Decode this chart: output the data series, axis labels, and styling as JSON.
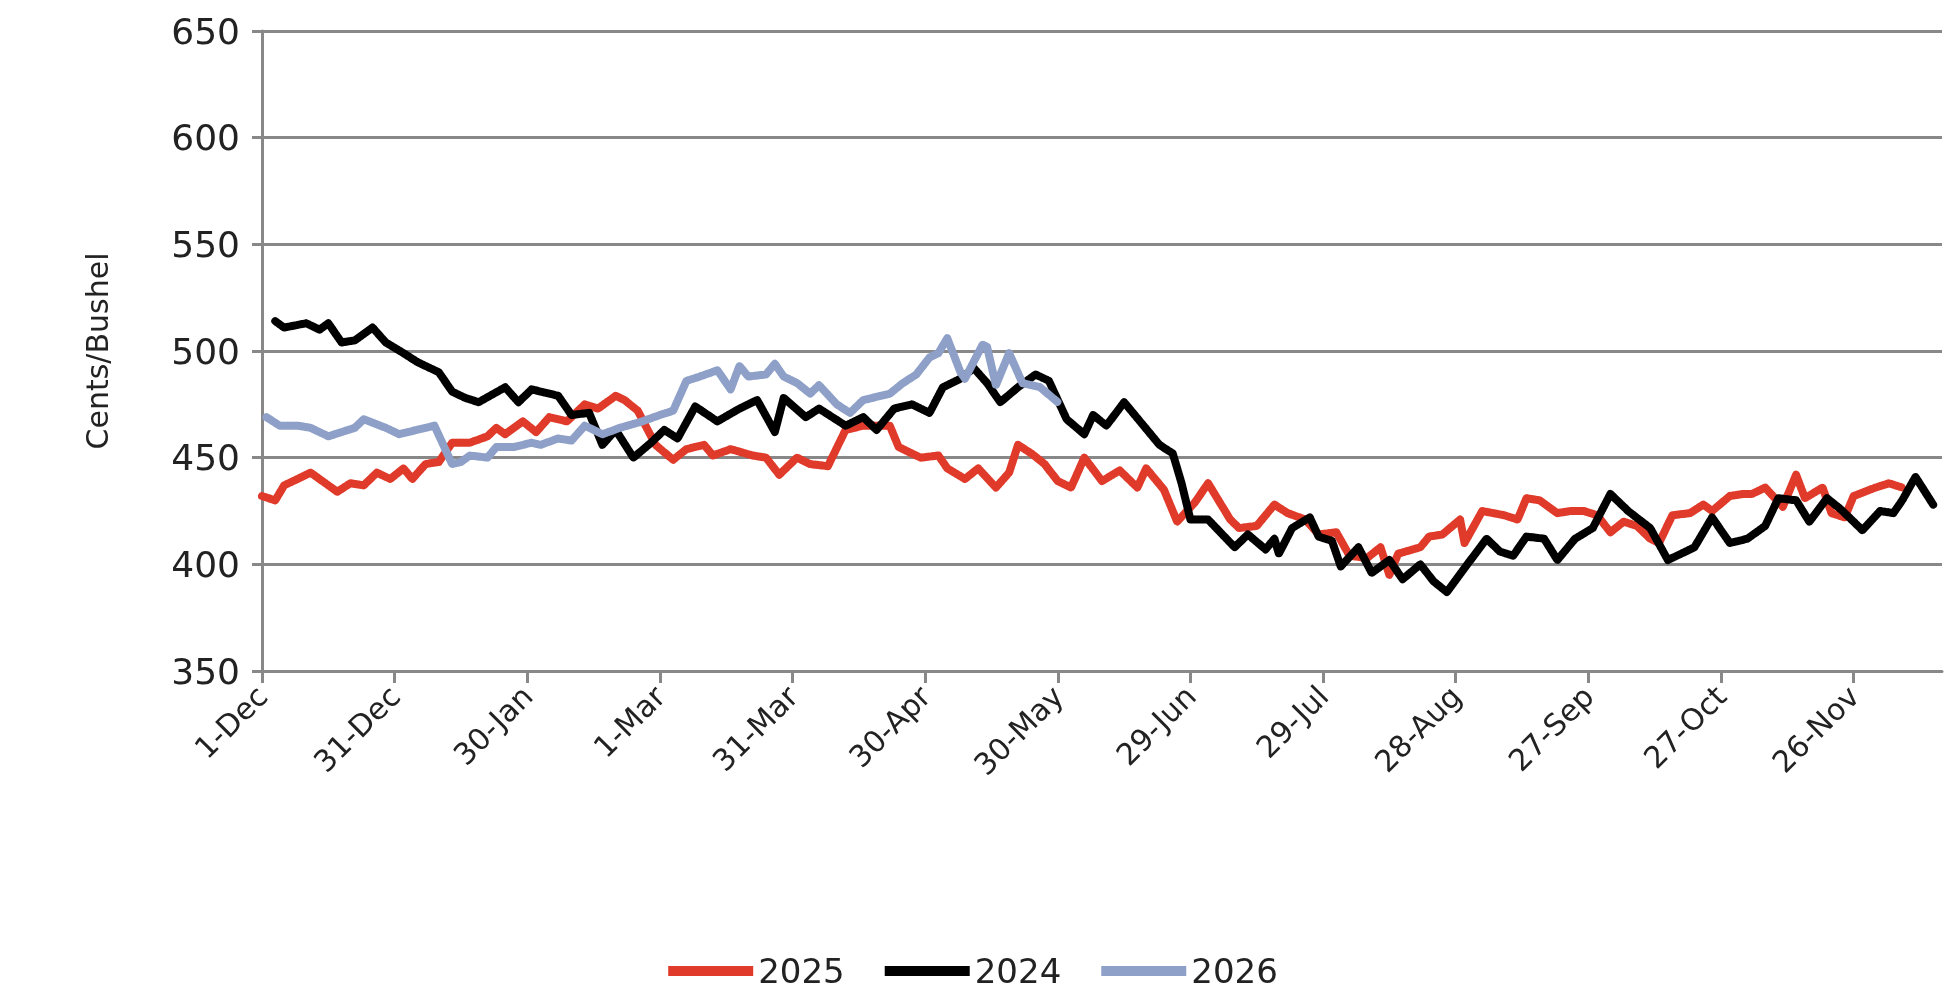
{
  "chart_data": {
    "type": "line",
    "ylabel": "Cents/Bushel",
    "xlim": [
      "2025-12-01",
      "2026-12-16"
    ],
    "xticks": [
      {
        "value": "2025-12-01",
        "label": "1-Dec"
      },
      {
        "value": "2025-12-31",
        "label": "31-Dec"
      },
      {
        "value": "2026-01-30",
        "label": "30-Jan"
      },
      {
        "value": "2026-03-01",
        "label": "1-Mar"
      },
      {
        "value": "2026-03-31",
        "label": "31-Mar"
      },
      {
        "value": "2026-04-30",
        "label": "30-Apr"
      },
      {
        "value": "2026-05-30",
        "label": "30-May"
      },
      {
        "value": "2026-06-29",
        "label": "29-Jun"
      },
      {
        "value": "2026-07-29",
        "label": "29-Jul"
      },
      {
        "value": "2026-08-28",
        "label": "28-Aug"
      },
      {
        "value": "2026-09-27",
        "label": "27-Sep"
      },
      {
        "value": "2026-10-27",
        "label": "27-Oct"
      },
      {
        "value": "2026-11-26",
        "label": "26-Nov"
      }
    ],
    "ylim": [
      350,
      650
    ],
    "yticks": [
      350,
      400,
      450,
      500,
      550,
      600,
      650
    ],
    "grid": "y",
    "legend": "bottom",
    "marker": "none",
    "line_style": "dashed",
    "series": [
      {
        "name": "2025",
        "color": "#e03a2a",
        "x": [
          "2025-12-01",
          "2025-12-04",
          "2025-12-06",
          "2025-12-10",
          "2025-12-12",
          "2025-12-14",
          "2025-12-18",
          "2025-12-21",
          "2025-12-24",
          "2025-12-27",
          "2025-12-30",
          "2026-01-02",
          "2026-01-04",
          "2026-01-07",
          "2026-01-10",
          "2026-01-13",
          "2026-01-17",
          "2026-01-21",
          "2026-01-23",
          "2026-01-25",
          "2026-01-29",
          "2026-02-01",
          "2026-02-04",
          "2026-02-08",
          "2026-02-12",
          "2026-02-15",
          "2026-02-19",
          "2026-02-21",
          "2026-02-24",
          "2026-02-28",
          "2026-03-04",
          "2026-03-07",
          "2026-03-11",
          "2026-03-13",
          "2026-03-17",
          "2026-03-22",
          "2026-03-25",
          "2026-03-28",
          "2026-04-01",
          "2026-04-04",
          "2026-04-08",
          "2026-04-12",
          "2026-04-16",
          "2026-04-22",
          "2026-04-24",
          "2026-04-29",
          "2026-05-03",
          "2026-05-05",
          "2026-05-09",
          "2026-05-12",
          "2026-05-16",
          "2026-05-19",
          "2026-05-21",
          "2026-05-24",
          "2026-05-27",
          "2026-05-30",
          "2026-06-02",
          "2026-06-05",
          "2026-06-09",
          "2026-06-13",
          "2026-06-17",
          "2026-06-19",
          "2026-06-23",
          "2026-06-26",
          "2026-06-30",
          "2026-07-03",
          "2026-07-08",
          "2026-07-10",
          "2026-07-14",
          "2026-07-18",
          "2026-07-21",
          "2026-07-25",
          "2026-07-28",
          "2026-08-01",
          "2026-08-04",
          "2026-08-08",
          "2026-08-11",
          "2026-08-13",
          "2026-08-15",
          "2026-08-20",
          "2026-08-22",
          "2026-08-25",
          "2026-08-29",
          "2026-08-30",
          "2026-09-03",
          "2026-09-08",
          "2026-09-11",
          "2026-09-13",
          "2026-09-16",
          "2026-09-20",
          "2026-09-23",
          "2026-09-26",
          "2026-09-29",
          "2026-10-02",
          "2026-10-05",
          "2026-10-08",
          "2026-10-11",
          "2026-10-13",
          "2026-10-16",
          "2026-10-20",
          "2026-10-23",
          "2026-10-25",
          "2026-10-29",
          "2026-11-01",
          "2026-11-03",
          "2026-11-06",
          "2026-11-10",
          "2026-11-13",
          "2026-11-15",
          "2026-11-19",
          "2026-11-21",
          "2026-11-24",
          "2026-11-26",
          "2026-12-01",
          "2026-12-04",
          "2026-12-07"
        ],
        "values": [
          432,
          430,
          437,
          441,
          443,
          440,
          434,
          438,
          437,
          443,
          440,
          445,
          440,
          447,
          448,
          457,
          457,
          460,
          464,
          461,
          467,
          462,
          469,
          467,
          475,
          473,
          479,
          477,
          472,
          456,
          449,
          454,
          456,
          451,
          454,
          451,
          450,
          442,
          450,
          447,
          446,
          463,
          465,
          465,
          455,
          450,
          451,
          445,
          440,
          445,
          436,
          443,
          456,
          452,
          447,
          439,
          436,
          450,
          439,
          444,
          436,
          445,
          435,
          420,
          429,
          438,
          421,
          417,
          418,
          428,
          424,
          421,
          414,
          415,
          404,
          403,
          408,
          395,
          405,
          408,
          413,
          414,
          421,
          410,
          425,
          423,
          421,
          431,
          430,
          424,
          425,
          425,
          423,
          415,
          420,
          418,
          412,
          410,
          423,
          424,
          428,
          425,
          432,
          433,
          433,
          436,
          427,
          442,
          431,
          436,
          424,
          422,
          432,
          436,
          438,
          436
        ]
      },
      {
        "name": "2024",
        "color": "#000000",
        "x": [
          "2025-12-04",
          "2025-12-06",
          "2025-12-11",
          "2025-12-14",
          "2025-12-16",
          "2025-12-19",
          "2025-12-22",
          "2025-12-26",
          "2025-12-29",
          "2026-01-02",
          "2026-01-05",
          "2026-01-08",
          "2026-01-10",
          "2026-01-13",
          "2026-01-16",
          "2026-01-19",
          "2026-01-25",
          "2026-01-28",
          "2026-01-31",
          "2026-02-06",
          "2026-02-09",
          "2026-02-13",
          "2026-02-16",
          "2026-02-19",
          "2026-02-23",
          "2026-02-27",
          "2026-03-02",
          "2026-03-05",
          "2026-03-09",
          "2026-03-14",
          "2026-03-19",
          "2026-03-23",
          "2026-03-27",
          "2026-03-29",
          "2026-04-03",
          "2026-04-06",
          "2026-04-12",
          "2026-04-16",
          "2026-04-19",
          "2026-04-23",
          "2026-04-27",
          "2026-05-01",
          "2026-05-04",
          "2026-05-08",
          "2026-05-11",
          "2026-05-14",
          "2026-05-17",
          "2026-05-21",
          "2026-05-25",
          "2026-05-28",
          "2026-06-01",
          "2026-06-05",
          "2026-06-07",
          "2026-06-10",
          "2026-06-14",
          "2026-06-18",
          "2026-06-22",
          "2026-06-25",
          "2026-06-27",
          "2026-06-29",
          "2026-07-03",
          "2026-07-09",
          "2026-07-12",
          "2026-07-16",
          "2026-07-18",
          "2026-07-19",
          "2026-07-22",
          "2026-07-26",
          "2026-07-28",
          "2026-07-31",
          "2026-08-02",
          "2026-08-06",
          "2026-08-09",
          "2026-08-13",
          "2026-08-16",
          "2026-08-20",
          "2026-08-23",
          "2026-08-26",
          "2026-08-31",
          "2026-09-04",
          "2026-09-07",
          "2026-09-10",
          "2026-09-13",
          "2026-09-17",
          "2026-09-20",
          "2026-09-24",
          "2026-09-28",
          "2026-10-02",
          "2026-10-06",
          "2026-10-11",
          "2026-10-15",
          "2026-10-18",
          "2026-10-21",
          "2026-10-25",
          "2026-10-29",
          "2026-11-02",
          "2026-11-06",
          "2026-11-09",
          "2026-11-13",
          "2026-11-16",
          "2026-11-20",
          "2026-11-23",
          "2026-11-28",
          "2026-12-02",
          "2026-12-05",
          "2026-12-07",
          "2026-12-10",
          "2026-12-14"
        ],
        "values": [
          514,
          511,
          513,
          510,
          513,
          504,
          505,
          511,
          504,
          499,
          495,
          492,
          490,
          481,
          478,
          476,
          483,
          476,
          482,
          479,
          470,
          471,
          456,
          463,
          450,
          457,
          463,
          459,
          474,
          467,
          473,
          477,
          462,
          478,
          469,
          473,
          465,
          469,
          463,
          473,
          475,
          471,
          483,
          487,
          492,
          485,
          476,
          483,
          489,
          486,
          468,
          461,
          470,
          465,
          476,
          466,
          456,
          452,
          438,
          421,
          421,
          408,
          414,
          407,
          412,
          405,
          417,
          422,
          413,
          411,
          399,
          408,
          396,
          402,
          393,
          400,
          392,
          387,
          401,
          412,
          406,
          404,
          413,
          412,
          402,
          412,
          417,
          433,
          425,
          417,
          402,
          405,
          408,
          422,
          410,
          412,
          418,
          431,
          430,
          420,
          431,
          426,
          416,
          425,
          424,
          430,
          441,
          428
        ]
      },
      {
        "name": "2026",
        "color": "#8ea0c8",
        "x": [
          "2025-12-02",
          "2025-12-05",
          "2025-12-09",
          "2025-12-12",
          "2025-12-16",
          "2025-12-19",
          "2025-12-22",
          "2025-12-24",
          "2025-12-29",
          "2026-01-01",
          "2026-01-05",
          "2026-01-09",
          "2026-01-13",
          "2026-01-15",
          "2026-01-17",
          "2026-01-21",
          "2026-01-23",
          "2026-01-27",
          "2026-01-31",
          "2026-02-02",
          "2026-02-06",
          "2026-02-09",
          "2026-02-12",
          "2026-02-16",
          "2026-02-20",
          "2026-02-25",
          "2026-03-01",
          "2026-03-04",
          "2026-03-07",
          "2026-03-10",
          "2026-03-14",
          "2026-03-17",
          "2026-03-19",
          "2026-03-21",
          "2026-03-25",
          "2026-03-27",
          "2026-03-29",
          "2026-04-01",
          "2026-04-04",
          "2026-04-06",
          "2026-04-10",
          "2026-04-13",
          "2026-04-16",
          "2026-04-22",
          "2026-04-25",
          "2026-04-28",
          "2026-05-01",
          "2026-05-03",
          "2026-05-05",
          "2026-05-08",
          "2026-05-09",
          "2026-05-13",
          "2026-05-14",
          "2026-05-16",
          "2026-05-19",
          "2026-05-22",
          "2026-05-26",
          "2026-05-30"
        ],
        "values": [
          469,
          465,
          465,
          464,
          460,
          462,
          464,
          468,
          464,
          461,
          463,
          465,
          447,
          448,
          451,
          450,
          455,
          455,
          457,
          456,
          459,
          458,
          465,
          461,
          464,
          467,
          470,
          472,
          486,
          488,
          491,
          482,
          493,
          488,
          489,
          494,
          488,
          485,
          480,
          484,
          475,
          471,
          477,
          480,
          485,
          489,
          497,
          499,
          506,
          490,
          487,
          503,
          502,
          484,
          499,
          485,
          483,
          476
        ]
      }
    ]
  }
}
